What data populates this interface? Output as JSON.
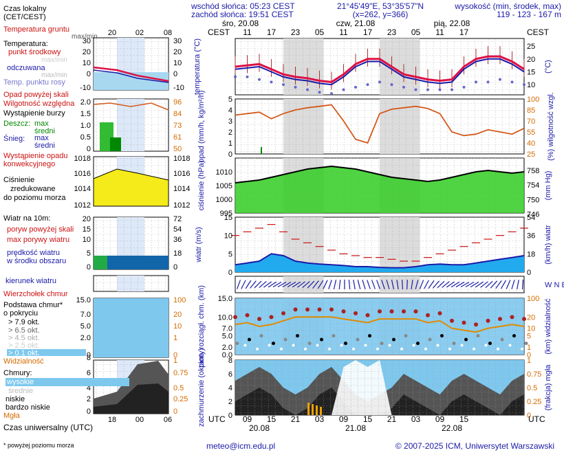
{
  "header": {
    "sunrise": "wschód słońca: 05:23 CEST",
    "sunset": "zachód słońca: 19:51 CEST",
    "coords": "21°45'49\"E, 53°35'57\"N",
    "grid": "(x=262, y=366)",
    "elevation_label": "wysokość (min, środek, max)",
    "elevation_values": "119 - 123 - 167 m"
  },
  "legend": {
    "local_time": "Czas lokalny",
    "local_time_sub": "(CET/CEST)",
    "local_ticks": [
      "20",
      "02",
      "08"
    ],
    "soil_temp": "Temperatura gruntu",
    "max_min": "max/min",
    "temperature": "Temperatura:",
    "mid_point": "punkt środkowy",
    "max_min2": "max/min",
    "felt": "odczuwana",
    "max_min3": "max/min",
    "dew_point": "Temp. punktu rosy",
    "precip_over": "Opad powyżej skali",
    "humidity": "Wilgotność względna",
    "storm": "Wystąpienie burzy",
    "rain": "Deszcz:",
    "rain_max": "max",
    "rain_mid": "średni",
    "snow": "Śnieg:",
    "snow_max": "max",
    "snow_mid": "średni",
    "conv": "Wystąpienie opadu",
    "conv2": "konwekcyjnego",
    "pressure1": "Ciśnienie",
    "pressure2": "zredukowane",
    "pressure3": "do poziomu morza",
    "wind": "Wiatr na 10m:",
    "gust_over": "poryw powyżej skali",
    "gust_max": "max porywy wiatru",
    "wind_speed": "prędkość wiatru",
    "wind_area": "w środku obszaru",
    "wind_dir": "kierunek wiatru",
    "windsock": "Wierzchołek chmur",
    "cloud_base": "Podstawa chmur*",
    "cloud_base2": "o pokryciu",
    "okt1": "> 7.9 okt.",
    "okt2": "> 6.5 okt.",
    "okt3": "> 4.5 okt.",
    "okt4": "> 2.5 okt.",
    "okt5": "> 0.1 okt.",
    "visibility": "Widzialność",
    "clouds": "Chmury:",
    "high": "wysokie",
    "mid": "średnie",
    "low": "niskie",
    "very_low": "bardzo niskie",
    "fog": "Mgła",
    "utc": "Czas uniwersalny (UTC)",
    "utc_ticks": [
      "18",
      "00",
      "06"
    ],
    "footnote": "* powyżej poziomu morza"
  },
  "footer": {
    "email": "meteo@icm.edu.pl",
    "copyright": "© 2007-2025 ICM, Uniwersytet Warszawski"
  },
  "chart_data": {
    "type": "line",
    "top_axis": {
      "label_left": "CEST",
      "label_right": "CEST",
      "days": [
        "śro, 20.08",
        "czw, 21.08",
        "pią, 22.08"
      ],
      "hours": [
        "11",
        "17",
        "23",
        "05",
        "11",
        "17",
        "23",
        "05",
        "11",
        "17"
      ]
    },
    "bottom_axis": {
      "label_left": "UTC",
      "label_right": "UTC",
      "hours": [
        "09",
        "15",
        "21",
        "03",
        "09",
        "15",
        "21",
        "03",
        "09",
        "15"
      ],
      "days": [
        "20.08",
        "21.08",
        "22.08"
      ]
    },
    "x_hours": [
      6,
      9,
      12,
      15,
      18,
      21,
      24,
      27,
      30,
      33,
      36,
      39,
      42,
      45,
      48,
      51,
      54,
      57,
      60,
      63,
      66,
      69,
      72,
      75,
      78
    ],
    "panels": [
      {
        "name": "temperature",
        "ylabel_left": "temperatura (°C)",
        "ylabel_right": "(°C)",
        "ylim": [
          6,
          28
        ],
        "ticks": [
          "25",
          "20",
          "15",
          "10"
        ],
        "series": [
          {
            "values": [
              17,
              17.5,
              18,
              16,
              14,
              13,
              12.5,
              11.5,
              11,
              14,
              18,
              20,
              20,
              17,
              14,
              13,
              12,
              11.5,
              12,
              17,
              20,
              21,
              21,
              19,
              16
            ]
          },
          {
            "values": [
              13,
              13,
              12,
              11,
              10,
              9,
              8,
              7,
              6.5,
              8,
              9,
              10,
              11,
              10,
              9,
              8,
              8,
              8,
              8,
              9,
              11,
              11,
              12,
              11,
              10
            ]
          }
        ]
      },
      {
        "name": "precip_humidity",
        "ylabel_left": "opad (mm/h, kg/m²/h)",
        "ylabel_right": "(%) wilgotność wzgl.",
        "ylim_left": [
          0,
          5
        ],
        "ylim_right": [
          25,
          100
        ],
        "ticks_left": [
          "5",
          "4",
          "3",
          "2",
          "1",
          "0"
        ],
        "ticks_right": [
          "100",
          "85",
          "70",
          "55",
          "40",
          "25"
        ],
        "series": [
          {
            "values": [
              78,
              80,
              82,
              73,
              80,
              85,
              88,
              90,
              92,
              70,
              45,
              40,
              80,
              86,
              88,
              90,
              87,
              80,
              55,
              50,
              52,
              58,
              55,
              52,
              60
            ]
          }
        ]
      },
      {
        "name": "pressure",
        "ylabel_left": "ciśnienie (hPa)",
        "ylabel_right": "(mm Hg)",
        "ylim": [
          995,
          1015
        ],
        "ticks_left": [
          "1010",
          "1005",
          "1000",
          "995"
        ],
        "ticks_right": [
          "758",
          "754",
          "750",
          "746"
        ],
        "series": [
          {
            "values": [
              1006,
              1006.5,
              1007,
              1008,
              1009,
              1010,
              1011,
              1011.5,
              1012,
              1011.5,
              1011,
              1010,
              1009,
              1008,
              1007.5,
              1007,
              1006.5,
              1007,
              1008,
              1009,
              1010,
              1010.5,
              1010,
              1009.5,
              1010
            ]
          }
        ]
      },
      {
        "name": "wind",
        "ylabel_left": "wiatr (m/s)",
        "ylabel_right": "(km/h) wiatr",
        "ylim": [
          0,
          15
        ],
        "ticks_left": [
          "15",
          "10",
          "5",
          "0"
        ],
        "ticks_right": [
          "54",
          "36",
          "18",
          "0"
        ],
        "series": [
          {
            "values": [
              2,
              2.5,
              3,
              5,
              4.5,
              3,
              2.5,
              2.2,
              2,
              1.8,
              1.5,
              1.5,
              1.3,
              1.2,
              1.2,
              1.5,
              2,
              2.2,
              2,
              2,
              2.5,
              3,
              3.5,
              4,
              4.5
            ]
          },
          {
            "values": [
              10,
              11,
              12,
              13,
              11,
              9,
              8,
              7,
              6,
              5,
              4.5,
              4,
              4,
              3.5,
              3,
              3,
              4,
              5,
              6,
              7,
              8,
              9,
              10,
              11,
              12
            ]
          }
        ]
      },
      {
        "name": "wind_direction",
        "ylabel_right": "W N E S"
      },
      {
        "name": "cloud_base_visibility",
        "ylabel_left": "pion. rozciągł. chm. (km)",
        "ylabel_right": "(km) widzialność",
        "ylim": [
          0,
          15
        ],
        "ticks_left": [
          "15.0",
          "10.0",
          "7.0",
          "5.0",
          "2.0",
          "0.0"
        ],
        "ticks_right": [
          "100",
          "20",
          "10",
          "5",
          "1",
          "0"
        ],
        "series": [
          {
            "values": [
              8,
              8.5,
              7.5,
              8,
              9,
              10,
              10,
              10,
              10,
              9.5,
              9,
              8.5,
              9.5,
              9.5,
              9.5,
              9.5,
              8.5,
              9,
              7,
              6.5,
              6,
              7,
              7.5,
              8,
              7.5
            ]
          }
        ]
      },
      {
        "name": "clouds_fog",
        "ylabel_left": "zachmurzenie (oktanty)",
        "ylabel_right": "(frakcja) mgła",
        "ylim": [
          0,
          8
        ],
        "ticks_left": [
          "8",
          "6",
          "4",
          "2",
          "0"
        ],
        "ticks_right": [
          "1",
          "0.75",
          "0.5",
          "0.25",
          "0"
        ],
        "series": [
          {
            "values": [
              5,
              6,
              7,
              6,
              4,
              3,
              4,
              6,
              7,
              5,
              3,
              2,
              3,
              4,
              6,
              5,
              4,
              3,
              5,
              6,
              5,
              4,
              3,
              5,
              6
            ]
          }
        ]
      }
    ],
    "mini_local_ticks": [
      "20",
      "02",
      "08"
    ],
    "mini_utc_ticks": [
      "18",
      "00",
      "06"
    ]
  }
}
